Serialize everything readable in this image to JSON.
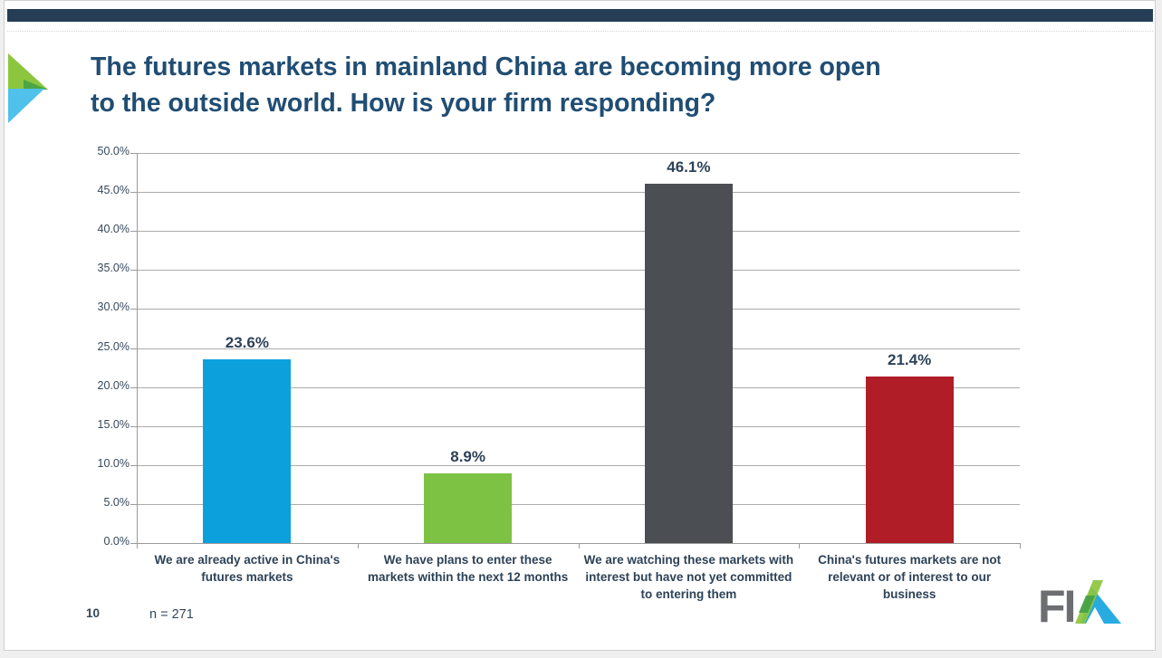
{
  "slide": {
    "accent_bar_color": "#253E56",
    "title_lines": [
      "The futures markets in mainland China are becoming more open",
      "to the outside world. How is your firm responding?"
    ],
    "page_number": "10",
    "sample_size_note": "n = 271"
  },
  "brand": {
    "fia_letters": "FI",
    "mark_gray": "#6D6E71",
    "mark_green": "#8CC63F",
    "mark_blue": "#29ABE2",
    "chevron_green": "#8CC63F",
    "chevron_overlap_green": "#4CA546",
    "chevron_blue": "#4FC1EA"
  },
  "chart_data": {
    "type": "bar",
    "title": "",
    "categories": [
      "We are already active in China's futures markets",
      "We have plans to enter these markets within the next 12 months",
      "We are watching these markets with interest but have not yet committed to entering them",
      "China's futures markets are not relevant or of interest to our business"
    ],
    "values": [
      23.6,
      8.9,
      46.1,
      21.4
    ],
    "value_labels": [
      "23.6%",
      "8.9%",
      "46.1%",
      "21.4%"
    ],
    "bar_colors": [
      "#0CA0DD",
      "#7DC242",
      "#4B4F54",
      "#B01D26"
    ],
    "ylim": [
      0,
      50
    ],
    "ytick_step": 5,
    "ytick_labels": [
      "0.0%",
      "5.0%",
      "10.0%",
      "15.0%",
      "20.0%",
      "25.0%",
      "30.0%",
      "35.0%",
      "40.0%",
      "45.0%",
      "50.0%"
    ],
    "grid": true,
    "gridline_color": "#ababab",
    "axis_color": "#9b9b9b",
    "text_color": "#35485A",
    "label_color": "#2D4257",
    "legend": "none"
  }
}
